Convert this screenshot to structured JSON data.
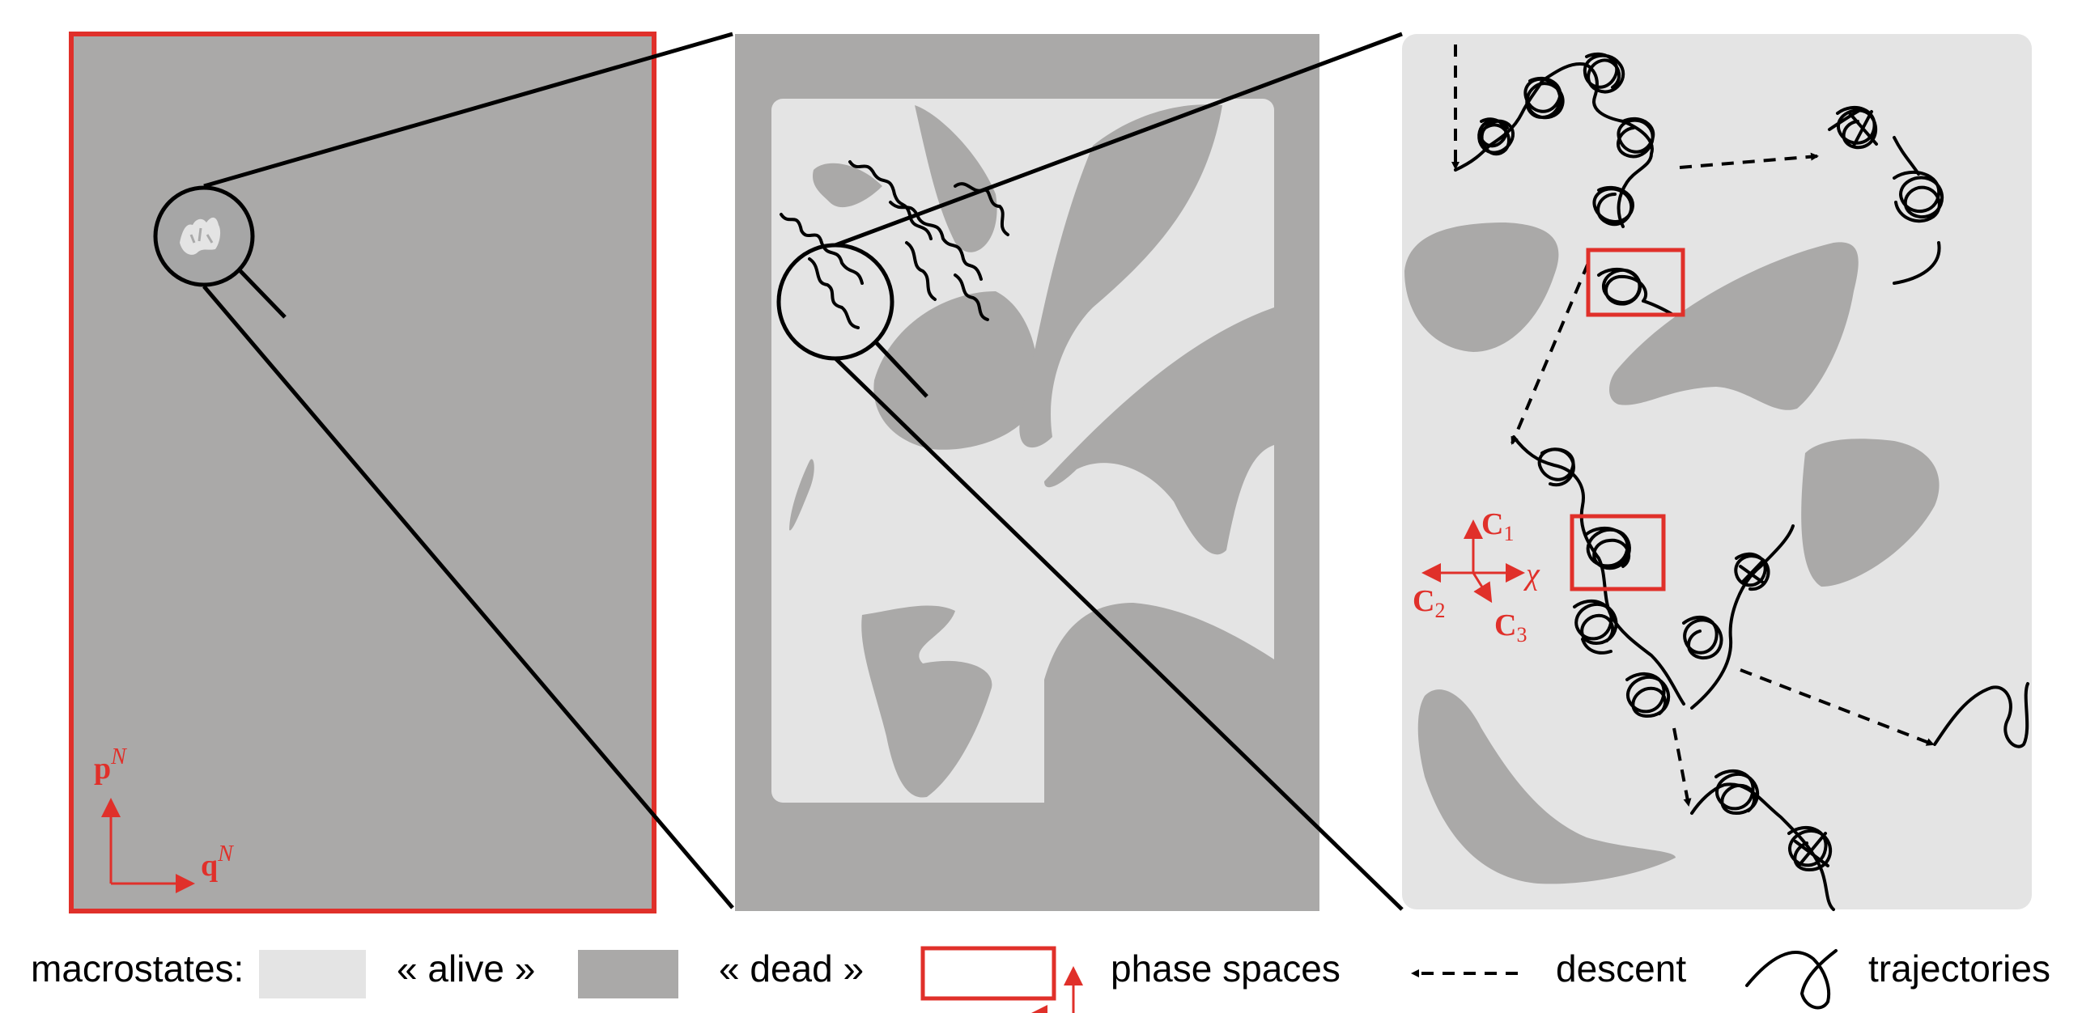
{
  "colors": {
    "alive": "#e4e4e4",
    "dead": "#aaa9a8",
    "phase_space": "#e0302a",
    "lines": "#000000"
  },
  "panel1": {
    "axis_y_label": "p",
    "axis_y_sup": "N",
    "axis_x_label": "q",
    "axis_x_sup": "N"
  },
  "panel3": {
    "coord_c1": "C",
    "coord_c1_sub": "1",
    "coord_c2": "C",
    "coord_c2_sub": "2",
    "coord_c3": "C",
    "coord_c3_sub": "3",
    "coord_chi": "χ"
  },
  "legend": {
    "macrostates_label": "macrostates:",
    "alive_label": "« alive »",
    "dead_label": "« dead »",
    "phase_spaces_label": "phase spaces",
    "descent_label": "descent",
    "trajectories_label": "trajectories"
  },
  "icons": {
    "magnifier": "magnifier-icon",
    "arrow": "arrow-icon",
    "trajectory": "trajectory-icon"
  }
}
